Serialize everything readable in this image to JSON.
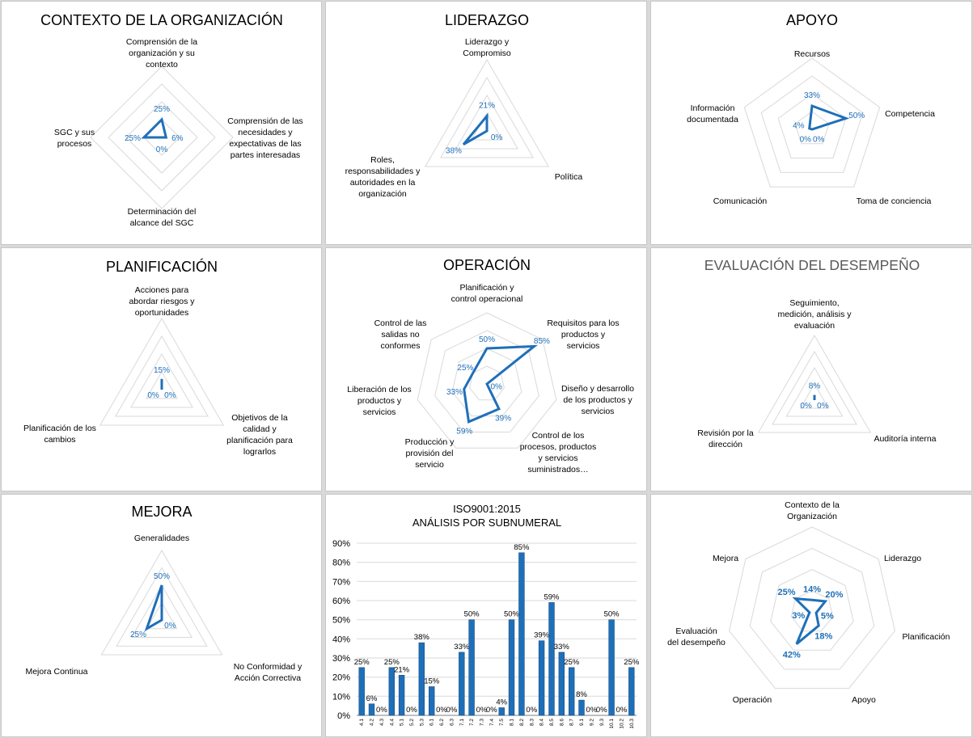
{
  "colors": {
    "series": "#1f6fb8",
    "grid": "#d9d9d9",
    "panel_bg": "#ffffff",
    "page_bg": "#d9d9d9"
  },
  "chart_data": [
    {
      "id": "contexto",
      "type": "radar",
      "title": "CONTEXTO DE LA ORGANIZACIÓN",
      "categories": [
        "Comprensión de la organización y su contexto",
        "Comprensión de las necesidades y expectativas de las partes interesadas",
        "Determinación del alcance del SGC",
        "SGC y sus procesos"
      ],
      "values": [
        25,
        6,
        0,
        25
      ],
      "value_labels": [
        "25%",
        "6%",
        "0%",
        "25%"
      ],
      "max": 100
    },
    {
      "id": "liderazgo",
      "type": "radar",
      "title": "LIDERAZGO",
      "categories": [
        "Liderazgo y Compromiso",
        "Política",
        "Roles, responsabilidades y autoridades en la organización"
      ],
      "values": [
        21,
        0,
        38
      ],
      "value_labels": [
        "21%",
        "0%",
        "38%"
      ],
      "max": 100
    },
    {
      "id": "apoyo",
      "type": "radar",
      "title": "APOYO",
      "categories": [
        "Recursos",
        "Competencia",
        "Toma de conciencia",
        "Comunicación",
        "Información documentada"
      ],
      "values": [
        33,
        50,
        0,
        0,
        4
      ],
      "value_labels": [
        "33%",
        "50%",
        "0%",
        "0%",
        "4%"
      ],
      "max": 100
    },
    {
      "id": "planificacion",
      "type": "radar",
      "title": "PLANIFICACIÓN",
      "categories": [
        "Acciones para abordar riesgos y oportunidades",
        "Objetivos de la calidad y planificación para lograrlos",
        "Planificación de los cambios"
      ],
      "values": [
        15,
        0,
        0
      ],
      "value_labels": [
        "15%",
        "0%",
        "0%"
      ],
      "max": 100
    },
    {
      "id": "operacion",
      "type": "radar",
      "title": "OPERACIÓN",
      "categories": [
        "Planificación y control operacional",
        "Requisitos para los productos y servicios",
        "Diseño y desarrollo de los productos y servicios",
        "Control de los procesos, productos y servicios suministrados…",
        "Producción y provisión del servicio",
        "Liberación de los productos y servicios",
        "Control de las salidas no conformes"
      ],
      "values": [
        50,
        85,
        0,
        39,
        59,
        33,
        25
      ],
      "value_labels": [
        "50%",
        "85%",
        "0%",
        "39%",
        "59%",
        "33%",
        "25%"
      ],
      "max": 100
    },
    {
      "id": "evaluacion",
      "type": "radar",
      "title": "EVALUACIÓN DEL DESEMPEÑO",
      "categories": [
        "Seguimiento, medición, análisis y evaluación",
        "Auditoría interna",
        "Revisión por la dirección"
      ],
      "values": [
        8,
        0,
        0
      ],
      "value_labels": [
        "8%",
        "0%",
        "0%"
      ],
      "max": 100
    },
    {
      "id": "mejora",
      "type": "radar",
      "title": "MEJORA",
      "categories": [
        "Generalidades",
        "No Conformidad y Acción Correctiva",
        "Mejora Continua"
      ],
      "values": [
        50,
        0,
        25
      ],
      "value_labels": [
        "50%",
        "0%",
        "25%"
      ],
      "max": 100
    },
    {
      "id": "subnumeral",
      "type": "bar",
      "title": "ISO9001:2015",
      "subtitle": "ANÁLISIS POR SUBNUMERAL",
      "categories": [
        "4.1",
        "4.2",
        "4.3",
        "4.4",
        "5.1",
        "5.2",
        "5.3",
        "6.1",
        "6.2",
        "6.3",
        "7.1",
        "7.2",
        "7.3",
        "7.4",
        "7.5",
        "8.1",
        "8.2",
        "8.3",
        "8.4",
        "8.5",
        "8.6",
        "8.7",
        "9.1",
        "9.2",
        "9.3",
        "10.1",
        "10.2",
        "10.3"
      ],
      "values": [
        25,
        6,
        0,
        25,
        21,
        0,
        38,
        15,
        0,
        0,
        33,
        50,
        0,
        0,
        4,
        50,
        85,
        0,
        39,
        59,
        33,
        25,
        8,
        0,
        0,
        50,
        0,
        25
      ],
      "value_labels": [
        "25%",
        "6%",
        "0%",
        "25%",
        "21%",
        "0%",
        "38%",
        "15%",
        "0%",
        "0%",
        "33%",
        "50%",
        "0%",
        "0%",
        "4%",
        "50%",
        "85%",
        "0%",
        "39%",
        "59%",
        "33%",
        "25%",
        "8%",
        "0%",
        "0%",
        "50%",
        "0%",
        "25%"
      ],
      "yticks": [
        "0%",
        "10%",
        "20%",
        "30%",
        "40%",
        "50%",
        "60%",
        "70%",
        "80%",
        "90%"
      ],
      "ylim": [
        0,
        90
      ],
      "grid": true
    },
    {
      "id": "resumen",
      "type": "radar",
      "title": "",
      "categories": [
        "Contexto de la Organización",
        "Liderazgo",
        "Planificación",
        "Apoyo",
        "Operación",
        "Evaluación del desempeño",
        "Mejora"
      ],
      "values": [
        14,
        20,
        5,
        18,
        42,
        3,
        25
      ],
      "value_labels": [
        "14%",
        "20%",
        "5%",
        "18%",
        "42%",
        "3%",
        "25%"
      ],
      "max": 100
    }
  ]
}
